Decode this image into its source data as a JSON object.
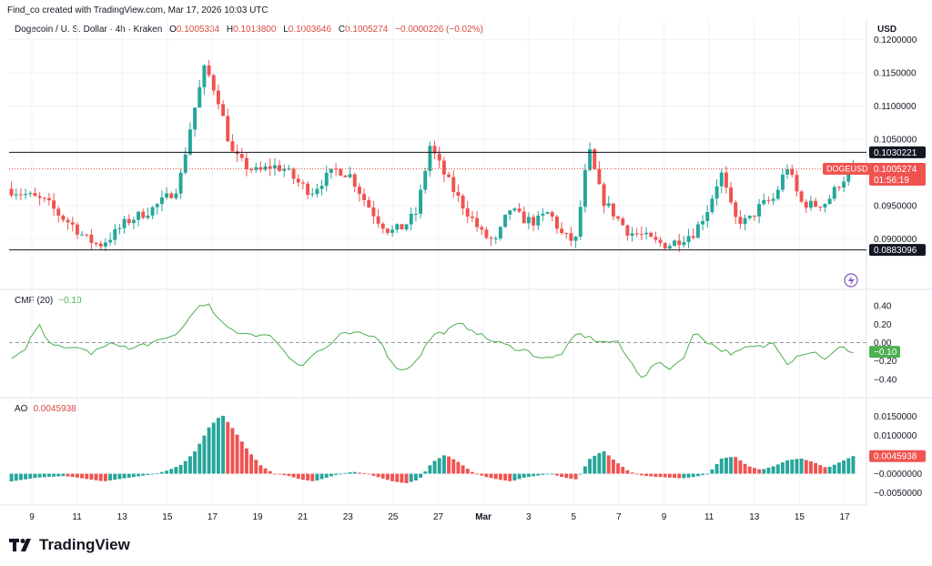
{
  "credit": "Find_co created with TradingView.com, Mar 17, 2026 10:03 UTC",
  "symbol": "Dogecoin / U. S. Dollar · 4h · Kraken",
  "ohlc": {
    "o_label": "O",
    "o": "0.1005334",
    "h_label": "H",
    "h": "0.1013800",
    "l_label": "L",
    "l": "0.1003646",
    "c_label": "C",
    "c": "0.1005274",
    "change": "−0.0000226 (−0.02%)"
  },
  "currency": "USD",
  "colors": {
    "up": "#26a69a",
    "down": "#ef5350",
    "cmf": "#4caf50",
    "level": "#131722",
    "current": "#ef5350"
  },
  "price_axis": {
    "ticks": [
      "0.1200000",
      "0.1150000",
      "0.1100000",
      "0.1050000",
      "0.0950000",
      "0.0900000"
    ],
    "top_cut_tick": "0.1200000"
  },
  "levels": {
    "upper": "0.1030221",
    "lower": "0.0883096"
  },
  "current_price": {
    "symbol": "DOGEUSD",
    "price": "0.1005274",
    "countdown": "01:56:19"
  },
  "cmf": {
    "title": "CMF (20)",
    "value": "−0.10",
    "ticks": [
      "0.40",
      "0.20",
      "0.00",
      "−0.20",
      "−0.40"
    ]
  },
  "ao": {
    "title": "AO",
    "value": "0.0045938",
    "ticks": [
      "0.0150000",
      "0.0100000",
      "0.0050000",
      "−0.0000000",
      "−0.0050000"
    ]
  },
  "time_axis": [
    "9",
    "11",
    "13",
    "15",
    "17",
    "19",
    "21",
    "23",
    "25",
    "27",
    "Mar",
    "3",
    "5",
    "7",
    "9",
    "11",
    "13",
    "15",
    "17"
  ],
  "logo_text": "TradingView",
  "chart_data": {
    "type": "candlestick",
    "title": "Dogecoin / U. S. Dollar · 4h · Kraken",
    "y_unit": "USD",
    "ylim": [
      0.084,
      0.1205
    ],
    "x_dates": [
      "Feb 9",
      "Feb 11",
      "Feb 13",
      "Feb 15",
      "Feb 17",
      "Feb 19",
      "Feb 21",
      "Feb 23",
      "Feb 25",
      "Feb 27",
      "Mar 1",
      "Mar 3",
      "Mar 5",
      "Mar 7",
      "Mar 9",
      "Mar 11",
      "Mar 13",
      "Mar 15",
      "Mar 17"
    ],
    "close_path": [
      0.0975,
      0.097,
      0.0962,
      0.0955,
      0.0935,
      0.092,
      0.09,
      0.089,
      0.0905,
      0.0925,
      0.0935,
      0.0945,
      0.096,
      0.098,
      0.108,
      0.116,
      0.111,
      0.103,
      0.101,
      0.1,
      0.101,
      0.1005,
      0.0985,
      0.097,
      0.099,
      0.1005,
      0.0995,
      0.096,
      0.093,
      0.091,
      0.0918,
      0.094,
      0.104,
      0.1,
      0.0965,
      0.0935,
      0.0905,
      0.0895,
      0.0945,
      0.093,
      0.0925,
      0.094,
      0.0905,
      0.0895,
      0.1035,
      0.096,
      0.0935,
      0.091,
      0.0905,
      0.0895,
      0.089,
      0.09,
      0.091,
      0.0945,
      0.1,
      0.093,
      0.0925,
      0.095,
      0.096,
      0.101,
      0.0955,
      0.095,
      0.0955,
      0.0985,
      0.1005
    ],
    "levels": [
      0.1030221,
      0.0883096
    ],
    "last": 0.1005274,
    "cmf": {
      "ylim": [
        -0.46,
        0.45
      ],
      "values": [
        -0.18,
        -0.1,
        0.2,
        0.0,
        -0.08,
        -0.04,
        -0.12,
        -0.05,
        0.0,
        -0.08,
        -0.02,
        0.0,
        0.05,
        0.15,
        0.38,
        0.4,
        0.2,
        0.12,
        0.1,
        0.08,
        0.05,
        -0.15,
        -0.25,
        -0.12,
        -0.05,
        0.08,
        0.1,
        0.08,
        0.05,
        -0.25,
        -0.3,
        -0.15,
        0.08,
        0.12,
        0.2,
        0.15,
        0.05,
        0.0,
        -0.05,
        -0.08,
        -0.15,
        -0.18,
        -0.1,
        0.1,
        0.05,
        0.0,
        0.02,
        -0.2,
        -0.38,
        -0.22,
        -0.28,
        -0.18,
        0.12,
        0.0,
        -0.08,
        -0.12,
        -0.05,
        -0.05,
        0.0,
        -0.22,
        -0.12,
        -0.1,
        -0.18,
        -0.05,
        -0.1
      ]
    },
    "ao": {
      "ylim": [
        -0.0065,
        0.0165
      ],
      "values": [
        -0.002,
        -0.0015,
        -0.001,
        -0.0008,
        -0.0006,
        -0.001,
        -0.0015,
        -0.002,
        -0.0015,
        -0.001,
        -0.0005,
        0.0,
        0.001,
        0.0025,
        0.006,
        0.012,
        0.0155,
        0.011,
        0.006,
        0.002,
        0.0,
        -0.0005,
        -0.0015,
        -0.002,
        -0.001,
        0.0,
        0.0005,
        0.0,
        -0.001,
        -0.002,
        -0.0025,
        -0.0015,
        0.003,
        0.005,
        0.003,
        0.0005,
        -0.0008,
        -0.0015,
        -0.002,
        -0.001,
        -0.0005,
        0.0,
        -0.001,
        -0.0015,
        0.004,
        0.006,
        0.003,
        0.0005,
        -0.0005,
        -0.0008,
        -0.001,
        -0.0012,
        -0.0008,
        0.0,
        0.004,
        0.0045,
        0.002,
        0.001,
        0.002,
        0.0035,
        0.004,
        0.003,
        0.0015,
        0.003,
        0.0045938
      ]
    }
  }
}
